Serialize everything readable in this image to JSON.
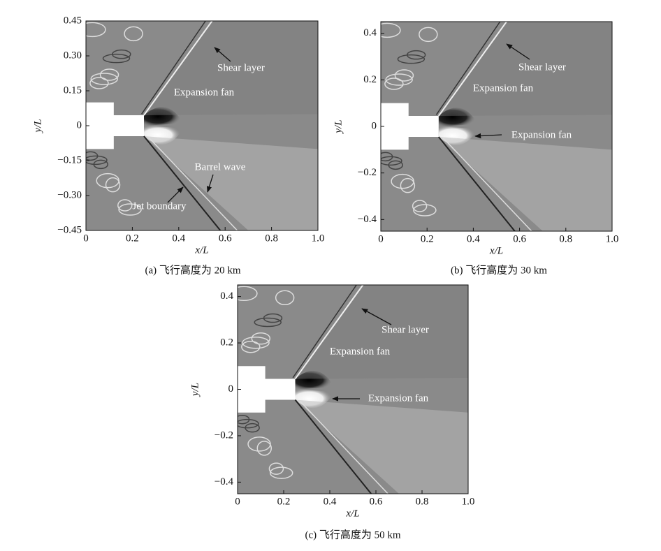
{
  "panels": [
    {
      "xlim": [
        0,
        1
      ],
      "ylim": [
        -0.45,
        0.45
      ],
      "xticks": [
        0,
        0.2,
        0.4,
        0.6,
        0.8,
        {
          "value": 1,
          "label": "1.0"
        }
      ],
      "yticks": [
        0.45,
        {
          "value": 0.3,
          "label": "0.30"
        },
        0.15,
        0,
        {
          "value": -0.15,
          "label": "−0.15"
        },
        {
          "value": -0.3,
          "label": "−0.30"
        },
        {
          "value": -0.45,
          "label": "−0.45"
        }
      ],
      "xlabel": "x/L",
      "ylabel": "y/L",
      "annotations": [
        "Shear layer",
        "Expansion fan",
        "Barrel wave",
        "Jet boundary"
      ],
      "caption": "(a) 飞行高度为 20 km"
    },
    {
      "xlim": [
        0,
        1
      ],
      "ylim": [
        -0.45,
        0.45
      ],
      "xticks": [
        0,
        0.2,
        0.4,
        0.6,
        0.8,
        {
          "value": 1,
          "label": "1.0"
        }
      ],
      "yticks": [
        0.4,
        0.2,
        0,
        {
          "value": -0.2,
          "label": "−0.2"
        },
        {
          "value": -0.4,
          "label": "−0.4"
        }
      ],
      "xlabel": "x/L",
      "ylabel": "y/L",
      "annotations": [
        "Shear layer",
        "Expansion fan",
        "Expansion fan"
      ],
      "caption": "(b) 飞行高度为 30 km"
    },
    {
      "xlim": [
        0,
        1
      ],
      "ylim": [
        -0.45,
        0.45
      ],
      "xticks": [
        0,
        0.2,
        0.4,
        0.6,
        0.8,
        {
          "value": 1,
          "label": "1.0"
        }
      ],
      "yticks": [
        0.4,
        0.2,
        0,
        {
          "value": -0.2,
          "label": "−0.2"
        },
        {
          "value": -0.4,
          "label": "−0.4"
        }
      ],
      "xlabel": "x/L",
      "ylabel": "y/L",
      "annotations": [
        "Shear layer",
        "Expansion fan",
        "Expansion fan"
      ],
      "caption": "(c) 飞行高度为 50 km"
    }
  ]
}
